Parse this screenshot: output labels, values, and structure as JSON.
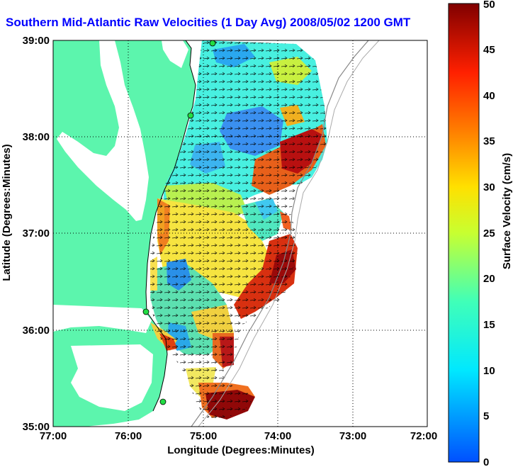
{
  "title": "Southern Mid-Atlantic Raw Velocities (1 Day Avg) 2008/05/02 1200 GMT",
  "map": {
    "x_ticks": [
      "77:00",
      "76:00",
      "75:00",
      "74:00",
      "73:00",
      "72:00"
    ],
    "y_ticks": [
      "39:00",
      "38:00",
      "37:00",
      "36:00",
      "35:00"
    ],
    "x_label": "Longitude (Degrees:Minutes)",
    "y_label": "Latitude (Degrees:Minutes)",
    "lon_range": [
      -77,
      -72
    ],
    "lat_range": [
      35,
      39
    ],
    "land_color": "#5cf5ad",
    "water_color": "#ffffff"
  },
  "colorbar": {
    "label": "Surface Velocity (cm/s)",
    "ticks": [
      "0",
      "5",
      "10",
      "15",
      "20",
      "25",
      "30",
      "35",
      "40",
      "45",
      "50"
    ],
    "range": [
      0,
      50
    ]
  }
}
